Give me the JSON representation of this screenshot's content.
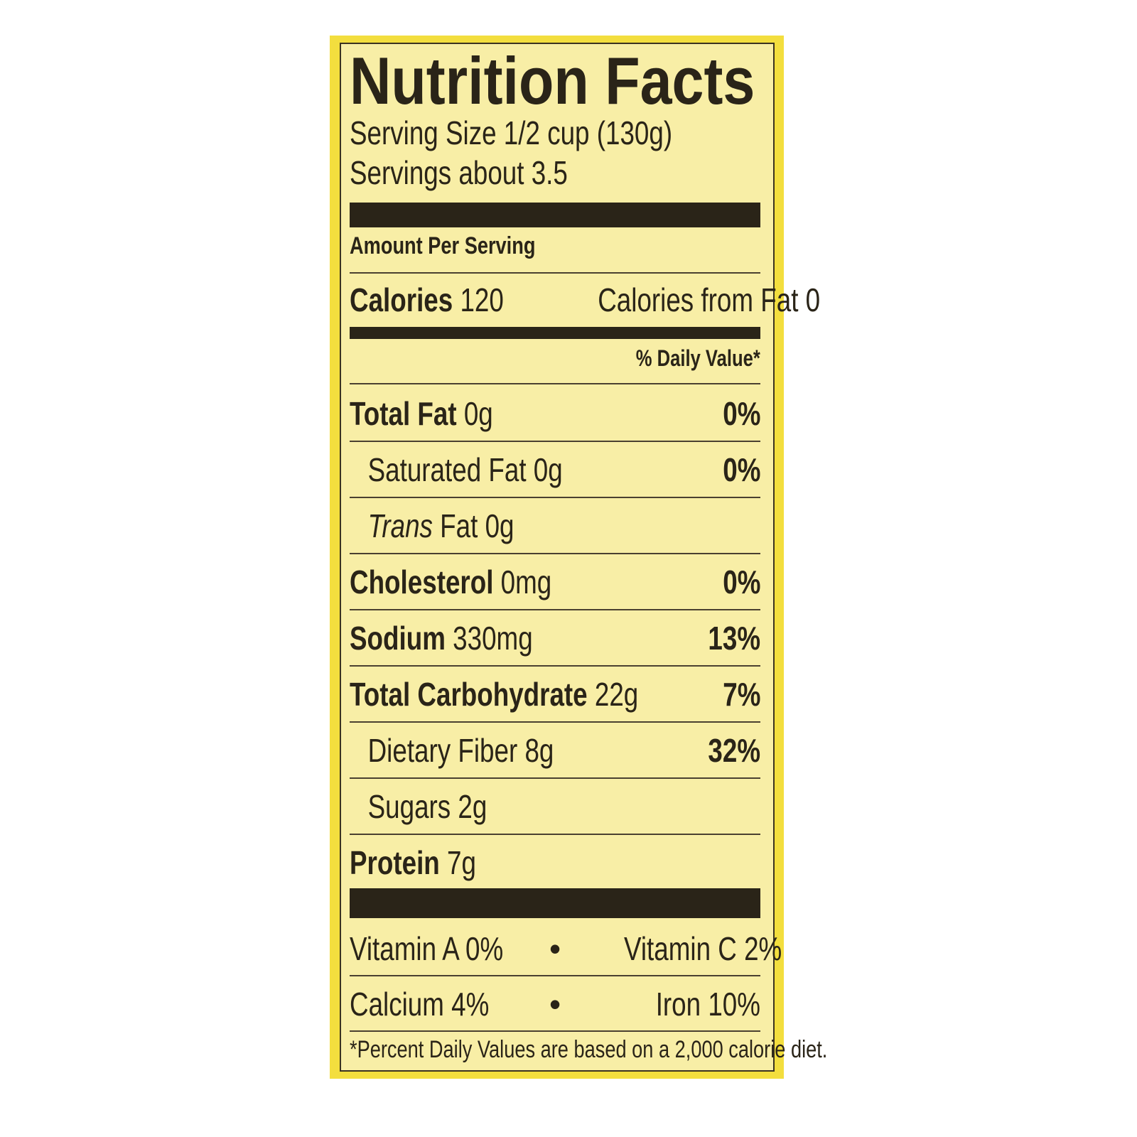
{
  "title": "Nutrition Facts",
  "serving_size": "Serving Size 1/2 cup (130g)",
  "servings": "Servings about 3.5",
  "amount_per_serving": "Amount Per Serving",
  "calories": {
    "label": "Calories",
    "value": "120",
    "from_fat": "Calories from Fat 0"
  },
  "daily_value_header": "% Daily Value*",
  "nutrients": [
    {
      "label": "Total Fat",
      "amount": "0g",
      "dv": "0%",
      "bold": true,
      "indent": false,
      "italic_prefix": ""
    },
    {
      "label": "Saturated Fat",
      "amount": "0g",
      "dv": "0%",
      "bold": false,
      "indent": true,
      "italic_prefix": ""
    },
    {
      "label": "Fat",
      "amount": "0g",
      "dv": "",
      "bold": false,
      "indent": true,
      "italic_prefix": "Trans"
    },
    {
      "label": "Cholesterol",
      "amount": "0mg",
      "dv": "0%",
      "bold": true,
      "indent": false,
      "italic_prefix": ""
    },
    {
      "label": "Sodium",
      "amount": "330mg",
      "dv": "13%",
      "bold": true,
      "indent": false,
      "italic_prefix": ""
    },
    {
      "label": "Total Carbohydrate",
      "amount": "22g",
      "dv": "7%",
      "bold": true,
      "indent": false,
      "italic_prefix": ""
    },
    {
      "label": "Dietary Fiber",
      "amount": "8g",
      "dv": "32%",
      "bold": false,
      "indent": true,
      "italic_prefix": ""
    },
    {
      "label": "Sugars",
      "amount": "2g",
      "dv": "",
      "bold": false,
      "indent": true,
      "italic_prefix": ""
    },
    {
      "label": "Protein",
      "amount": "7g",
      "dv": "",
      "bold": true,
      "indent": false,
      "italic_prefix": ""
    }
  ],
  "vitamins": [
    {
      "left": "Vitamin A 0%",
      "right": "Vitamin C 2%"
    },
    {
      "left": "Calcium 4%",
      "right": "Iron 10%"
    }
  ],
  "separator": "•",
  "footnote": "*Percent Daily Values are based on a 2,000  calorie diet.",
  "colors": {
    "outer": "#f3de3e",
    "label_bg": "#f8eea6",
    "ink": "#2a2418"
  }
}
